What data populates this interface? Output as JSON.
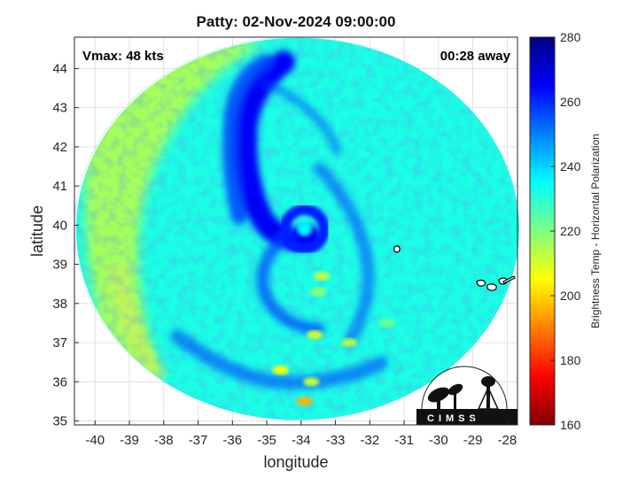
{
  "title": "Patty: 02-Nov-2024 09:00:00",
  "annotations": {
    "vmax": "Vmax: 48 kts",
    "time_away": "00:28 away"
  },
  "axes": {
    "xlabel": "longitude",
    "ylabel": "latitude",
    "xlim": [
      -40.6,
      -27.7
    ],
    "ylim": [
      34.9,
      44.8
    ],
    "xticks": [
      -40,
      -39,
      -38,
      -37,
      -36,
      -35,
      -34,
      -33,
      -32,
      -31,
      -30,
      -29,
      -28
    ],
    "yticks": [
      35,
      36,
      37,
      38,
      39,
      40,
      41,
      42,
      43,
      44
    ],
    "grid": true
  },
  "colorbar": {
    "label": "Brightness Temp - Horizontal Polarization",
    "min": 160,
    "max": 280,
    "ticks": [
      160,
      180,
      200,
      220,
      240,
      260,
      280
    ],
    "colormap": "jet"
  },
  "swath": {
    "center_lon": -34.1,
    "center_lat": 39.9,
    "background_tb": 232
  },
  "storm": {
    "center_lon": -33.9,
    "center_lat": 39.9,
    "eye_tb": 236,
    "eyewall_tb": 262,
    "rainband_tb": 258,
    "rainband_max_tb": 266
  },
  "convective_cells": [
    {
      "lon": -33.4,
      "lat": 38.7,
      "tb": 212
    },
    {
      "lon": -33.5,
      "lat": 38.3,
      "tb": 218
    },
    {
      "lon": -33.6,
      "lat": 37.2,
      "tb": 210
    },
    {
      "lon": -32.6,
      "lat": 37.0,
      "tb": 214
    },
    {
      "lon": -34.6,
      "lat": 36.3,
      "tb": 205
    },
    {
      "lon": -33.7,
      "lat": 36.0,
      "tb": 212
    },
    {
      "lon": -33.9,
      "lat": 35.5,
      "tb": 196
    },
    {
      "lon": -31.5,
      "lat": 37.5,
      "tb": 222
    }
  ],
  "warm_band_tb": 210,
  "logo": {
    "name": "cimss-logo",
    "text": "CIMSS"
  }
}
